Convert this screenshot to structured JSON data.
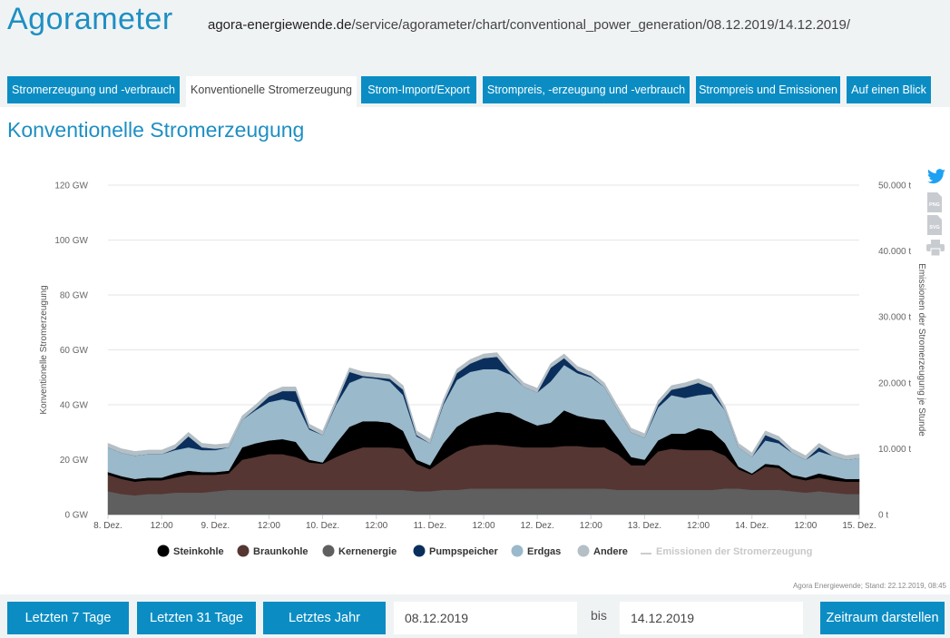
{
  "header": {
    "brand": "Agorameter",
    "url_host": "agora-energiewende.de",
    "url_path": "/service/agorameter/chart/conventional_power_generation/08.12.2019/14.12.2019/"
  },
  "tabs": [
    {
      "label": "Stromerzeugung und -verbrauch",
      "active": false
    },
    {
      "label": "Konventionelle Stromerzeugung",
      "active": true
    },
    {
      "label": "Strom-Import/Export",
      "active": false
    },
    {
      "label": "Strompreis, -erzeugung und -verbrauch",
      "active": false
    },
    {
      "label": "Strompreis und Emissionen",
      "active": false
    },
    {
      "label": "Auf einen Blick",
      "active": false
    }
  ],
  "section_title": "Konventionelle Stromerzeugung",
  "side_icons": [
    "twitter-icon",
    "png-export-icon",
    "svg-export-icon",
    "print-icon"
  ],
  "side_icon_labels": {
    "png": "PNG",
    "svg": "SVG"
  },
  "colors": {
    "accent": "#0b8dc4",
    "Steinkohle": "#000000",
    "Braunkohle": "#553633",
    "Kernenergie": "#5f5f5f",
    "Pumpspeicher": "#0a2f5c",
    "Erdgas": "#9ab9cb",
    "Andere": "#b4bfc6",
    "Emissionen": "#cccccc"
  },
  "chart_data": {
    "type": "area",
    "stacked": true,
    "ylabel": "Konventionelle Stromerzeugung",
    "y2label": "Emissionen der Stromerzeugung je Stunde",
    "ylim": [
      0,
      120
    ],
    "y2lim": [
      0,
      50000
    ],
    "yticks": [
      "0 GW",
      "20 GW",
      "40 GW",
      "60 GW",
      "80 GW",
      "100 GW",
      "120 GW"
    ],
    "y2ticks": [
      "0 t",
      "10.000 t",
      "20.000 t",
      "30.000 t",
      "40.000 t",
      "50.000 t"
    ],
    "xticks": [
      "8. Dez.",
      "12:00",
      "9. Dez.",
      "12:00",
      "10. Dez.",
      "12:00",
      "11. Dez.",
      "12:00",
      "12. Dez.",
      "12:00",
      "13. Dez.",
      "12:00",
      "14. Dez.",
      "12:00",
      "15. Dez."
    ],
    "x": [
      0,
      3,
      6,
      9,
      12,
      15,
      18,
      21,
      24,
      27,
      30,
      33,
      36,
      39,
      42,
      45,
      48,
      51,
      54,
      57,
      60,
      63,
      66,
      69,
      72,
      75,
      78,
      81,
      84,
      87,
      90,
      93,
      96,
      99,
      102,
      105,
      108,
      111,
      114,
      117,
      120,
      123,
      126,
      129,
      132,
      135,
      138,
      141,
      144,
      147,
      150,
      153,
      156,
      159,
      162,
      165,
      168
    ],
    "x_unit": "Stunden ab 8. Dez. 00:00",
    "series": [
      {
        "name": "Kernenergie",
        "values": [
          8.5,
          7.5,
          7,
          7.5,
          7.5,
          8,
          8,
          8,
          8.5,
          9,
          9,
          9,
          9,
          9,
          9,
          9,
          9,
          9,
          9,
          9,
          9,
          9,
          9,
          8.5,
          8.5,
          9,
          9,
          9.5,
          9.5,
          9.5,
          9.5,
          9.5,
          9.5,
          9.5,
          9.5,
          9.5,
          9.5,
          9.5,
          9,
          9,
          9,
          9,
          9,
          9,
          9,
          9,
          9.5,
          9.5,
          9,
          9,
          9,
          8.5,
          8,
          8.5,
          8,
          7.5,
          7.5
        ]
      },
      {
        "name": "Braunkohle",
        "values": [
          6,
          5.5,
          5,
          5,
          5,
          5.5,
          6.5,
          6.5,
          6,
          6,
          11,
          12,
          13,
          13,
          12,
          10,
          9.5,
          12,
          14,
          15.5,
          15.5,
          15.5,
          15,
          10,
          8,
          11,
          14,
          15.5,
          16,
          16,
          15.5,
          15,
          15,
          15,
          15.5,
          15.5,
          15,
          15,
          13,
          9,
          9,
          14,
          15,
          14.5,
          14.5,
          14.5,
          12,
          7,
          5.5,
          8.5,
          8,
          5,
          4.5,
          5,
          4.5,
          4.5,
          4.5
        ]
      },
      {
        "name": "Steinkohle",
        "values": [
          1,
          1,
          1,
          1,
          1,
          1.5,
          1.5,
          1,
          1,
          1,
          4.5,
          5,
          5,
          5.5,
          5.5,
          1,
          0.5,
          5,
          9,
          9.5,
          9.5,
          9,
          6.5,
          1.5,
          1.5,
          6,
          9,
          10,
          11,
          12,
          12,
          10,
          8,
          9,
          13,
          11,
          10.5,
          10,
          6,
          3,
          2,
          4,
          5.5,
          6,
          8,
          7,
          4.5,
          1,
          0.5,
          1,
          1,
          1,
          1,
          1.5,
          1.5,
          1,
          1
        ]
      },
      {
        "name": "Erdgas",
        "values": [
          9,
          8.5,
          8.5,
          8.5,
          8.5,
          8.5,
          8.5,
          8,
          8,
          8.5,
          10,
          12,
          14,
          14.5,
          14.5,
          11,
          10,
          14,
          16,
          16,
          15.5,
          15,
          13,
          8.5,
          8,
          14,
          17,
          17,
          16.5,
          15.5,
          14,
          12,
          12,
          15,
          16.5,
          15.5,
          15,
          12,
          10,
          9,
          8,
          12,
          14,
          13,
          12,
          13.5,
          12,
          7,
          6,
          8.5,
          8,
          8,
          6.5,
          8,
          7.5,
          7,
          7.5
        ]
      },
      {
        "name": "Pumpspeicher",
        "values": [
          0,
          0,
          0,
          0,
          0,
          0.5,
          4,
          1,
          0.5,
          0,
          0,
          0.5,
          2,
          3,
          4,
          0.5,
          0,
          0.5,
          4,
          0.5,
          0.5,
          1,
          2,
          0.5,
          0,
          0.5,
          2.5,
          3,
          4,
          4.5,
          0.5,
          0,
          0,
          5,
          2.5,
          1,
          0.5,
          0,
          0,
          0,
          0,
          1,
          2,
          4,
          4.5,
          2,
          0,
          0,
          0,
          2,
          1,
          0,
          0,
          1.5,
          0,
          0,
          0
        ]
      },
      {
        "name": "Andere",
        "values": [
          1.5,
          1.5,
          1.5,
          1.5,
          1.5,
          1.5,
          1.5,
          1.5,
          1.5,
          1.5,
          1.5,
          1.5,
          1.5,
          1.5,
          1.5,
          1.5,
          1.5,
          1.5,
          1.5,
          1.5,
          1.5,
          1.5,
          1.5,
          1.5,
          1.5,
          1.5,
          1.5,
          1.5,
          1.5,
          1.5,
          1.5,
          1.5,
          1.5,
          1.5,
          1.5,
          1.5,
          1.5,
          1.5,
          1.5,
          1.5,
          1.5,
          1.5,
          1.5,
          1.5,
          1.5,
          1.5,
          1.5,
          1.5,
          1.5,
          1.5,
          1.5,
          1.5,
          1.5,
          1.5,
          1.5,
          1.5,
          1.5
        ]
      }
    ],
    "legend": [
      "Steinkohle",
      "Braunkohle",
      "Kernenergie",
      "Pumpspeicher",
      "Erdgas",
      "Andere",
      "Emissionen der Stromerzeugung"
    ],
    "legend_placement": "bottom",
    "grid": true
  },
  "source_note": "Agora Energiewende; Stand: 22.12.2019, 08:45",
  "controls": {
    "btn_7": "Letzten 7 Tage",
    "btn_31": "Letzten 31 Tage",
    "btn_year": "Letztes Jahr",
    "from_date": "08.12.2019",
    "bis_label": "bis",
    "to_date": "14.12.2019",
    "submit": "Zeitraum darstellen"
  }
}
